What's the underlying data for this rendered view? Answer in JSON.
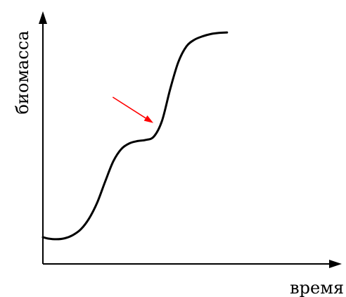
{
  "chart_data": {
    "type": "line",
    "title": "",
    "xlabel": "время",
    "ylabel": "биомасса",
    "grid": false,
    "ticks": false,
    "xlim": [
      0,
      10
    ],
    "ylim": [
      0,
      10
    ],
    "series": [
      {
        "color": "#000000",
        "points": [
          [
            0.0,
            1.03
          ],
          [
            0.2,
            0.97
          ],
          [
            0.5,
            0.94
          ],
          [
            0.8,
            0.98
          ],
          [
            1.1,
            1.12
          ],
          [
            1.4,
            1.38
          ],
          [
            1.7,
            1.85
          ],
          [
            2.0,
            2.55
          ],
          [
            2.3,
            3.5
          ],
          [
            2.6,
            4.4
          ],
          [
            2.9,
            4.95
          ],
          [
            3.2,
            5.2
          ],
          [
            3.5,
            5.3
          ],
          [
            3.8,
            5.35
          ],
          [
            4.1,
            5.5
          ],
          [
            4.4,
            6.2
          ],
          [
            4.7,
            7.6
          ],
          [
            5.0,
            8.8
          ],
          [
            5.3,
            9.5
          ],
          [
            5.6,
            9.8
          ],
          [
            5.9,
            9.95
          ],
          [
            6.2,
            10.05
          ],
          [
            6.5,
            10.1
          ],
          [
            6.8,
            10.12
          ]
        ]
      }
    ],
    "annotations": [
      {
        "type": "arrow",
        "color": "#ff0000",
        "from": [
          2.58,
          7.25
        ],
        "to": [
          4.08,
          6.1
        ]
      }
    ]
  }
}
